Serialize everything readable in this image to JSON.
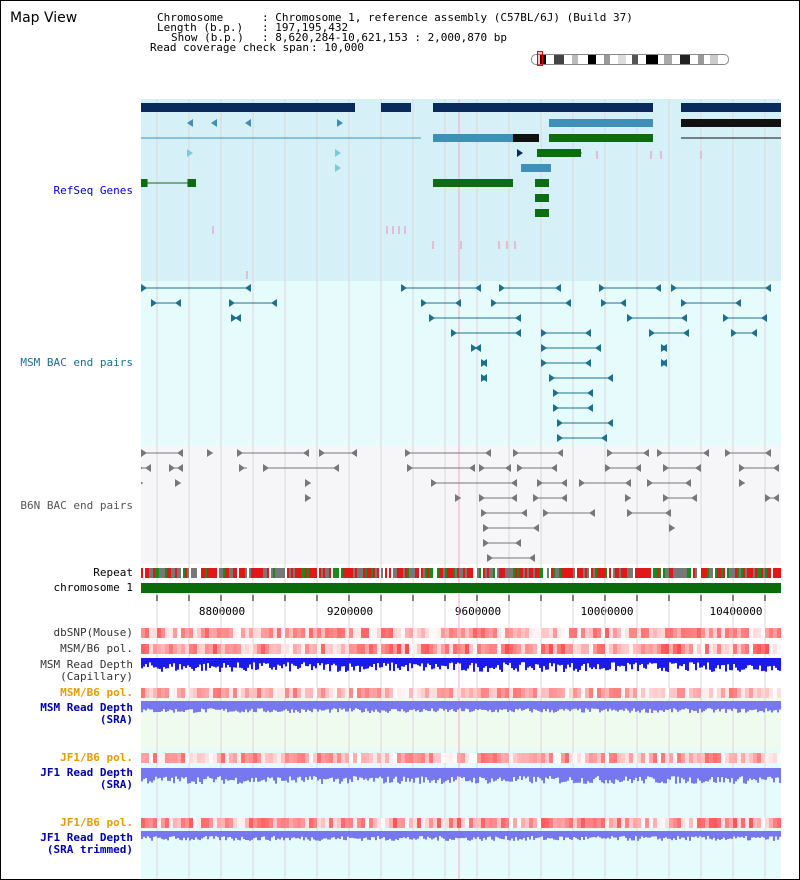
{
  "view_title": "Map View",
  "header": {
    "chromosome_key": "Chromosome",
    "chromosome_val": ": Chromosome 1, reference assembly (C57BL/6J) (Build 37)",
    "length_key": "Length (b.p.)",
    "length_val": ": 197,195,432",
    "show_key": "Show (b.p.)",
    "show_val": ": 8,620,284-10,621,153 : 2,000,870 bp",
    "span_key": "Read coverage check span",
    "span_val": ": 10,000"
  },
  "tracks": {
    "refseq": "RefSeq Genes",
    "msm_bac": "MSM BAC end pairs",
    "b6n_bac": "B6N BAC end pairs",
    "repeat": "Repeat",
    "chromosome": "chromosome 1",
    "dbsnp": "dbSNP(Mouse)",
    "msm_b6_pol": "MSM/B6 pol.",
    "msm_depth_cap_1": "MSM Read Depth",
    "msm_depth_cap_2": "(Capillary)",
    "msm_b6_pol_sra": "MSM/B6 pol.",
    "msm_depth_sra_1": "MSM Read Depth",
    "msm_depth_sra_2": "(SRA)",
    "jf1_b6_pol": "JF1/B6 pol.",
    "jf1_depth_1": "JF1 Read Depth",
    "jf1_depth_2": "(SRA)",
    "jf1_b6_pol_trim": "JF1/B6 pol.",
    "jf1_depth_trim_1": "JF1 Read Depth",
    "jf1_depth_trim_2": "(SRA trimmed)"
  },
  "axis": {
    "ticks": [
      "8800000",
      "9200000",
      "9600000",
      "10000000",
      "10400000"
    ]
  },
  "colors": {
    "refseq_bg": "#d6f0f8",
    "msm_bg": "#e6fbfb",
    "b6n_bg": "#f6f6f8",
    "gene_dark": "#0a2a5e",
    "gene_mid": "#3f8fb8",
    "gene_light": "#7fc7dc",
    "gene_green": "#0d6b12",
    "msm_pair": "#1d6f8f",
    "b6n_pair": "#777777",
    "chromosome_bar": "#0a6b0a",
    "depth_blue": "#1a1aee",
    "depth_light": "#7777f0",
    "label_refseq": "#0000cc",
    "label_msm": "#1a6f8f",
    "label_b6n": "#555555",
    "label_orange": "#e89a00",
    "label_navy": "#0000aa"
  }
}
